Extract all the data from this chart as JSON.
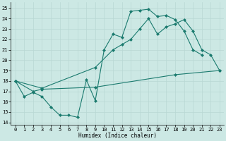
{
  "title": "",
  "xlabel": "Humidex (Indice chaleur)",
  "background_color": "#cce8e4",
  "line_color": "#1a7a6e",
  "grid_color": "#b8d8d4",
  "xlim": [
    -0.5,
    23.5
  ],
  "ylim": [
    13.8,
    25.6
  ],
  "xticks": [
    0,
    1,
    2,
    3,
    4,
    5,
    6,
    7,
    8,
    9,
    10,
    11,
    12,
    13,
    14,
    15,
    16,
    17,
    18,
    19,
    20,
    21,
    22,
    23
  ],
  "yticks": [
    14,
    15,
    16,
    17,
    18,
    19,
    20,
    21,
    22,
    23,
    24,
    25
  ],
  "line_jagged_x": [
    0,
    1,
    2,
    3,
    4,
    5,
    6,
    7,
    8,
    9,
    10,
    11,
    12,
    13,
    14,
    15,
    16,
    17,
    18,
    19,
    20,
    21
  ],
  "line_jagged_y": [
    18.0,
    16.5,
    16.9,
    16.5,
    15.5,
    14.7,
    14.7,
    14.5,
    18.1,
    16.1,
    21.0,
    22.5,
    22.2,
    24.7,
    24.8,
    24.9,
    24.2,
    24.3,
    23.9,
    22.8,
    21.0,
    20.5
  ],
  "line_upper_x": [
    0,
    3,
    9,
    11,
    12,
    13,
    14,
    15,
    16,
    17,
    18,
    19,
    20,
    21,
    22,
    23
  ],
  "line_upper_y": [
    18.0,
    17.3,
    19.3,
    21.0,
    21.5,
    22.0,
    23.0,
    24.0,
    22.5,
    23.2,
    23.5,
    23.9,
    22.8,
    21.0,
    20.5,
    19.0
  ],
  "line_lower_x": [
    0,
    2,
    3,
    9,
    18,
    23
  ],
  "line_lower_y": [
    18.0,
    17.0,
    17.2,
    17.4,
    18.6,
    19.0
  ]
}
